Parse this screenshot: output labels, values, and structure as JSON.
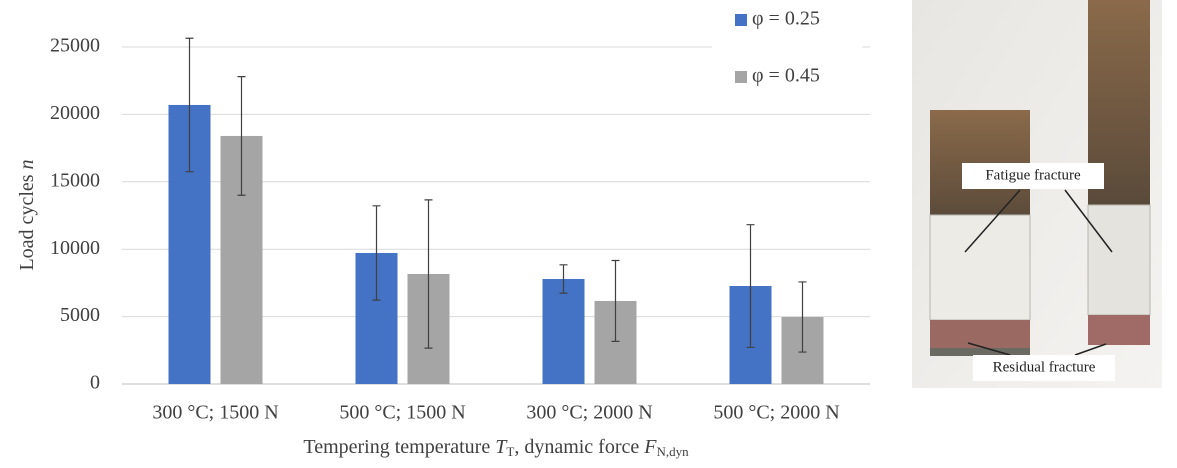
{
  "chart_data": {
    "type": "bar",
    "y_label_parts": [
      "Load cycles ",
      "n"
    ],
    "x_label_parts": [
      "Tempering temperature ",
      "T",
      "T",
      ", dynamic force ",
      "F",
      "N,dyn"
    ],
    "categories": [
      "300 °C; 1500 N",
      "500 °C; 1500 N",
      "300 °C; 2000 N",
      "500 °C; 2000 N"
    ],
    "series": [
      {
        "name": "φ = 0.25",
        "color": "#4472c4",
        "values": [
          20700,
          9720,
          7790,
          7270
        ],
        "errors": [
          4950,
          3500,
          1050,
          4550
        ]
      },
      {
        "name": "φ = 0.45",
        "color": "#a5a5a5",
        "values": [
          18400,
          8160,
          6160,
          4970
        ],
        "errors": [
          4400,
          5500,
          3000,
          2600
        ]
      }
    ],
    "ylim": [
      0,
      25000
    ],
    "yticks": [
      0,
      5000,
      10000,
      15000,
      20000,
      25000
    ],
    "grid": true,
    "legend": "top-right"
  },
  "image": {
    "labels": [
      "Fatigue fracture",
      "Residual fracture"
    ]
  }
}
